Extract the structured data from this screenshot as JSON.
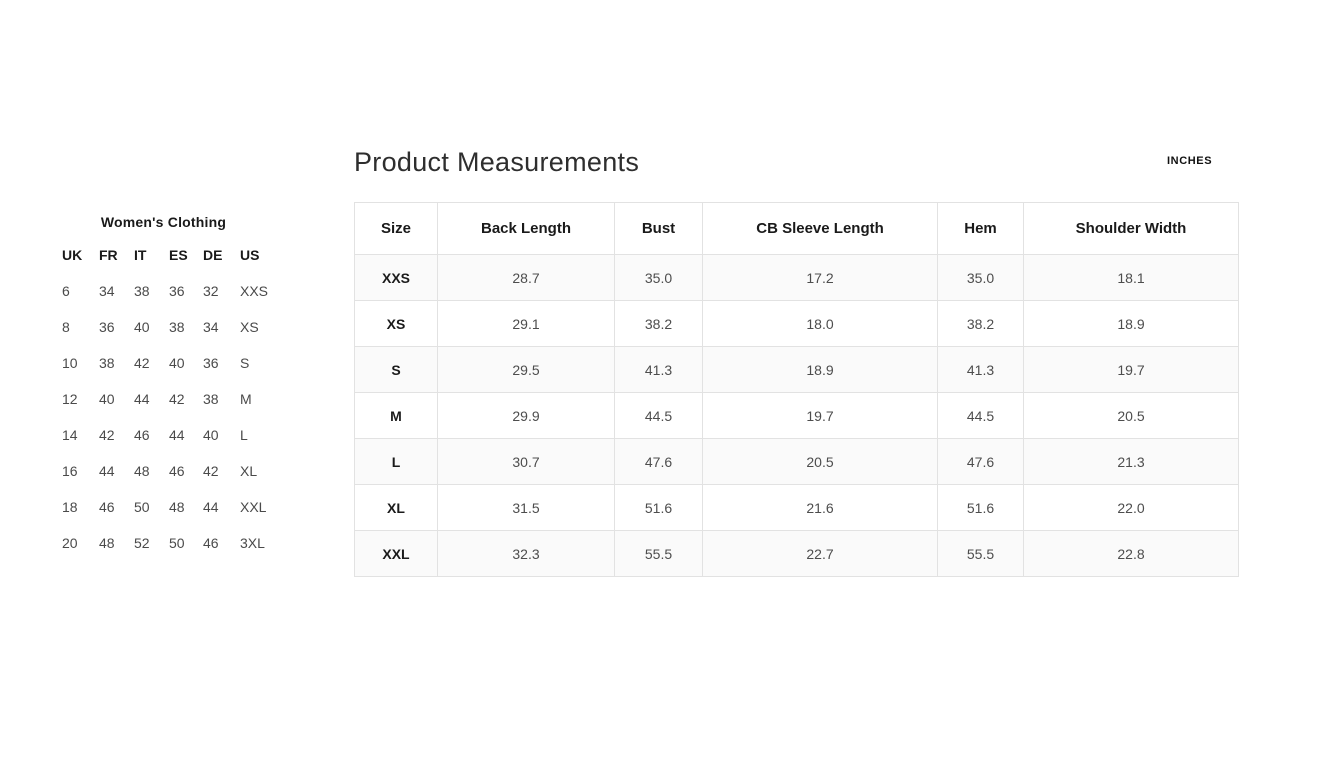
{
  "colors": {
    "background": "#ffffff",
    "text_primary": "#1a1a1a",
    "text_secondary": "#4a4a4a",
    "title_text": "#2e2e2e",
    "table_border": "#e2e2e2",
    "row_stripe": "#fafafa"
  },
  "header": {
    "title": "Product Measurements",
    "unit_label": "INCHES"
  },
  "conversion_table": {
    "title": "Women's Clothing",
    "columns": [
      "UK",
      "FR",
      "IT",
      "ES",
      "DE",
      "US"
    ],
    "rows": [
      [
        "6",
        "34",
        "38",
        "36",
        "32",
        "XXS"
      ],
      [
        "8",
        "36",
        "40",
        "38",
        "34",
        "XS"
      ],
      [
        "10",
        "38",
        "42",
        "40",
        "36",
        "S"
      ],
      [
        "12",
        "40",
        "44",
        "42",
        "38",
        "M"
      ],
      [
        "14",
        "42",
        "46",
        "44",
        "40",
        "L"
      ],
      [
        "16",
        "44",
        "48",
        "46",
        "42",
        "XL"
      ],
      [
        "18",
        "46",
        "50",
        "48",
        "44",
        "XXL"
      ],
      [
        "20",
        "48",
        "52",
        "50",
        "46",
        "3XL"
      ]
    ]
  },
  "measurements_table": {
    "columns": [
      "Size",
      "Back Length",
      "Bust",
      "CB Sleeve Length",
      "Hem",
      "Shoulder Width"
    ],
    "rows": [
      {
        "size": "XXS",
        "values": [
          "28.7",
          "35.0",
          "17.2",
          "35.0",
          "18.1"
        ]
      },
      {
        "size": "XS",
        "values": [
          "29.1",
          "38.2",
          "18.0",
          "38.2",
          "18.9"
        ]
      },
      {
        "size": "S",
        "values": [
          "29.5",
          "41.3",
          "18.9",
          "41.3",
          "19.7"
        ]
      },
      {
        "size": "M",
        "values": [
          "29.9",
          "44.5",
          "19.7",
          "44.5",
          "20.5"
        ]
      },
      {
        "size": "L",
        "values": [
          "30.7",
          "47.6",
          "20.5",
          "47.6",
          "21.3"
        ]
      },
      {
        "size": "XL",
        "values": [
          "31.5",
          "51.6",
          "21.6",
          "51.6",
          "22.0"
        ]
      },
      {
        "size": "XXL",
        "values": [
          "32.3",
          "55.5",
          "22.7",
          "55.5",
          "22.8"
        ]
      }
    ]
  }
}
